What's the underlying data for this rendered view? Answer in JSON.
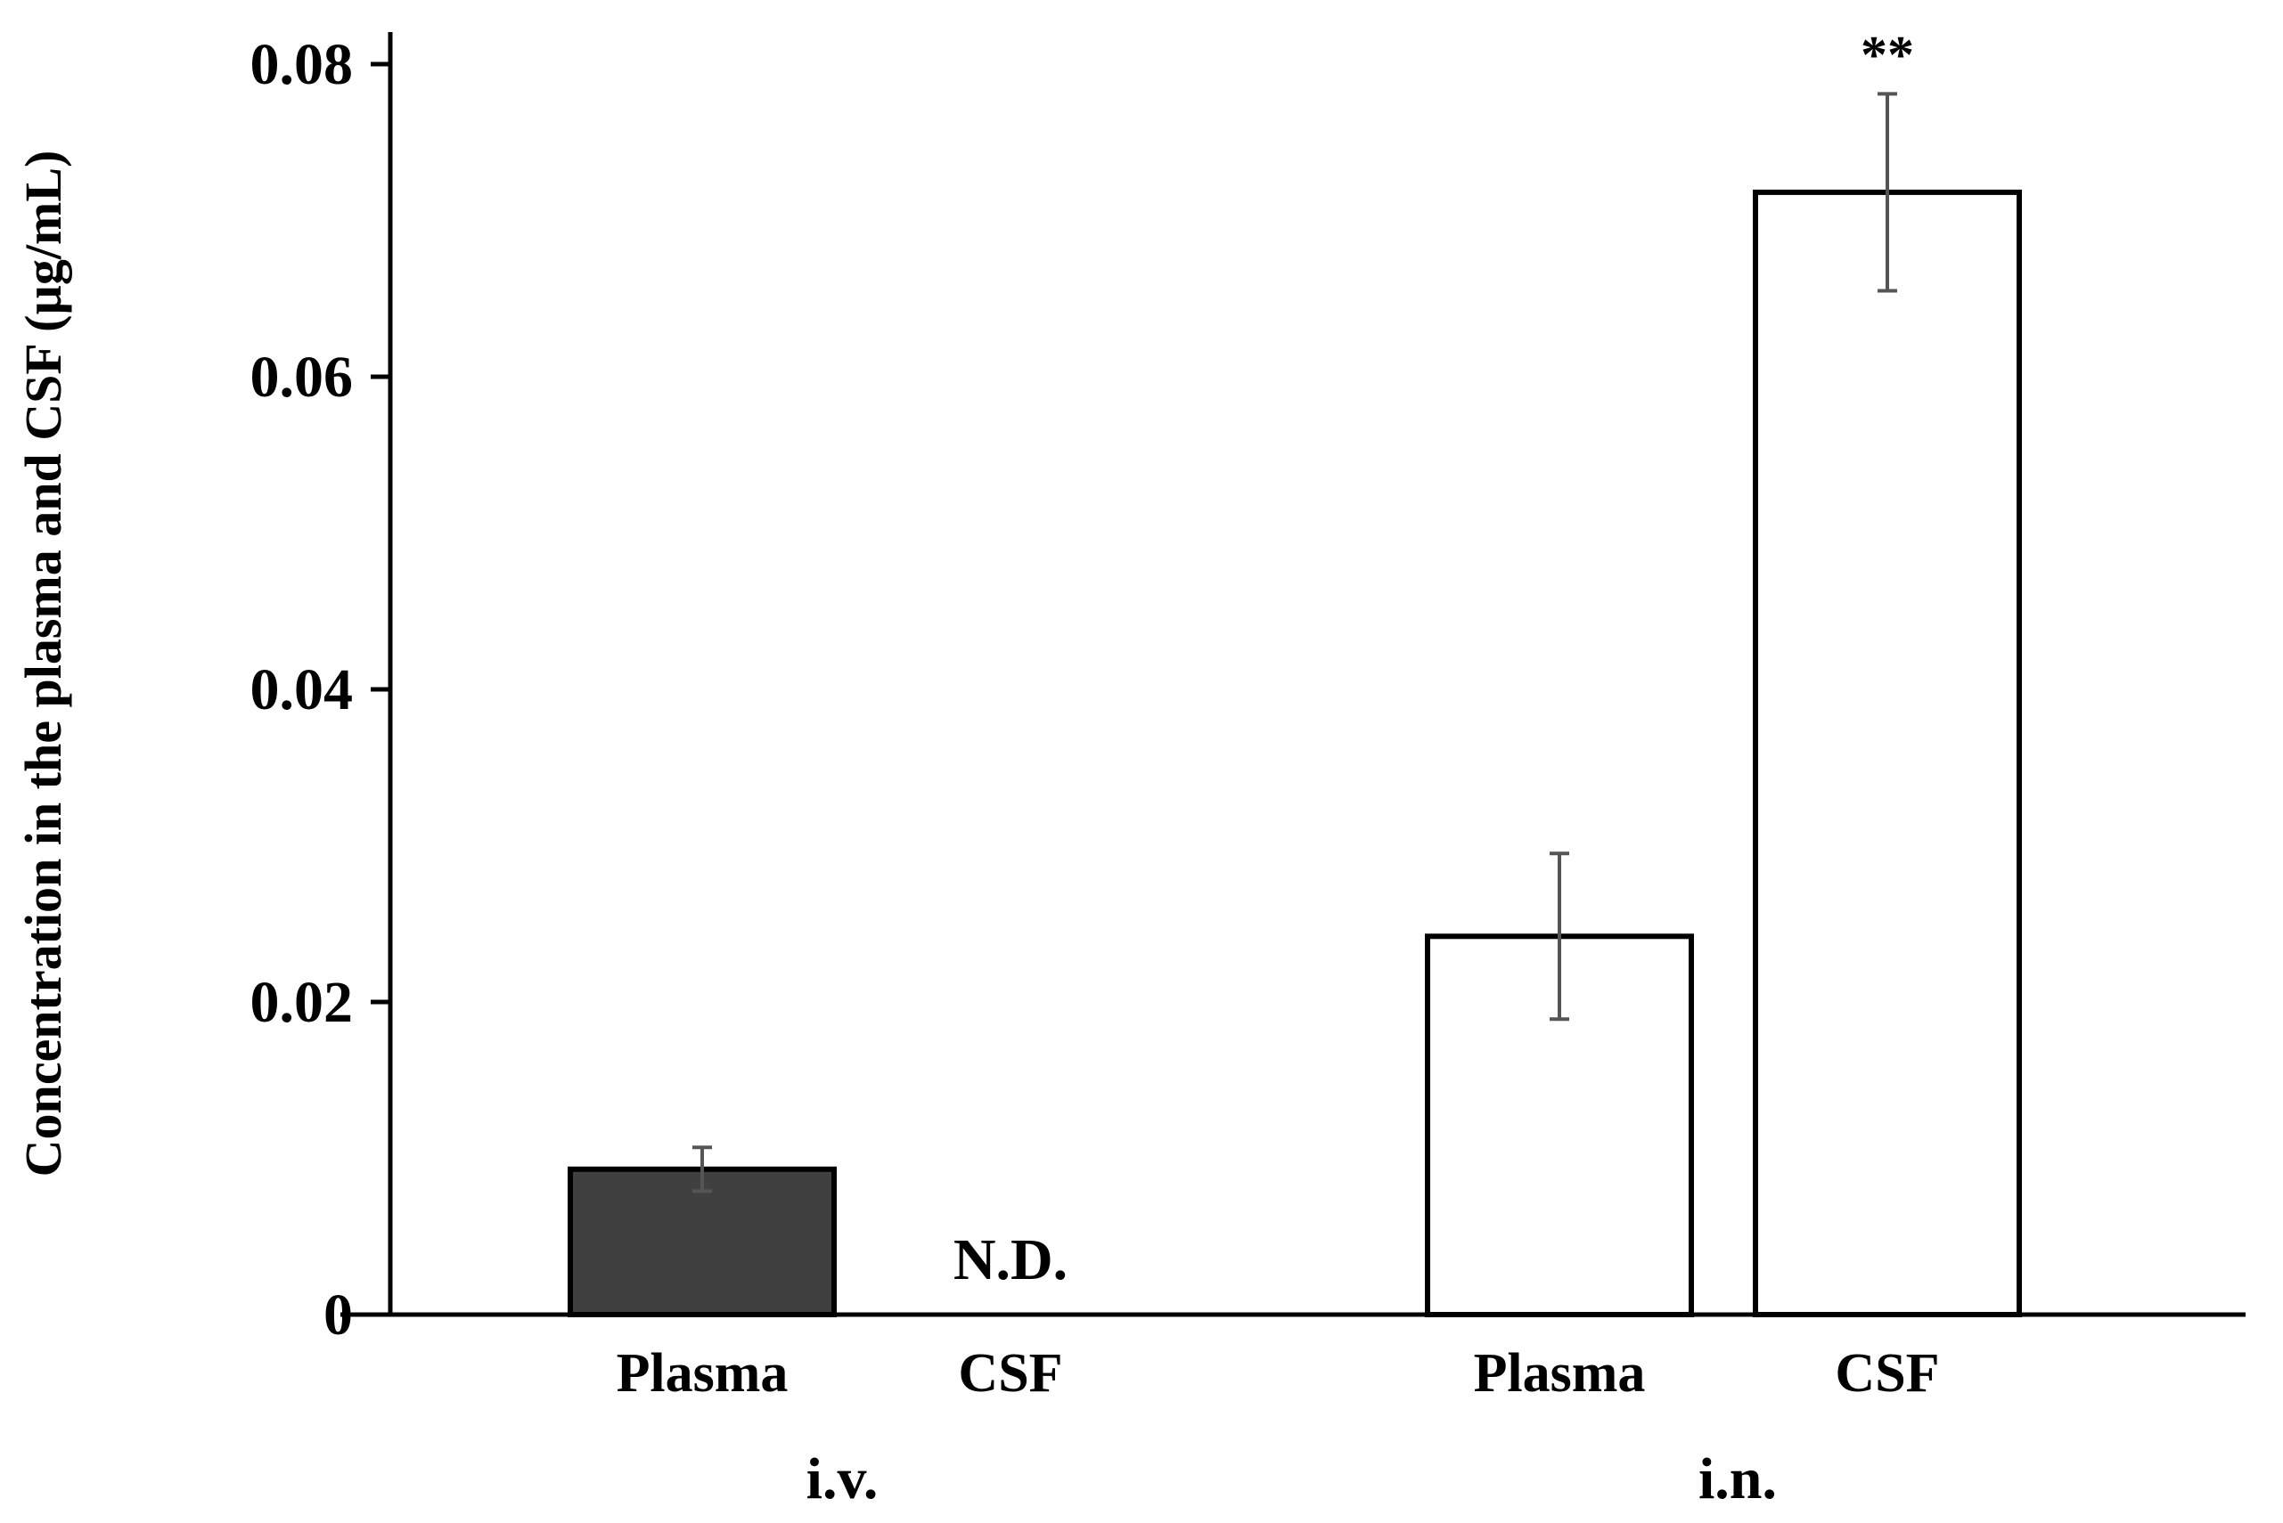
{
  "chart_data": {
    "type": "bar",
    "title": "",
    "xlabel": "",
    "ylabel": "Concentration in the plasma and CSF (µg/mL)",
    "ylim": [
      0,
      0.08
    ],
    "yticks": [
      0,
      0.02,
      0.04,
      0.06,
      0.08
    ],
    "ytick_labels": [
      "0",
      "0.02",
      "0.04",
      "0.06",
      "0.08"
    ],
    "grid": false,
    "groups": [
      {
        "name": "i.v.",
        "bars": [
          {
            "category": "Plasma",
            "value": 0.0093,
            "error": 0.0014,
            "fill": "#404040"
          },
          {
            "category": "CSF",
            "value": null,
            "error": null,
            "fill": "#404040",
            "note": "N.D."
          }
        ]
      },
      {
        "name": "i.n.",
        "bars": [
          {
            "category": "Plasma",
            "value": 0.0242,
            "error": 0.0053,
            "fill": "#ffffff"
          },
          {
            "category": "CSF",
            "value": 0.0718,
            "error": 0.0063,
            "fill": "#ffffff",
            "annotation": "**"
          }
        ]
      }
    ]
  }
}
